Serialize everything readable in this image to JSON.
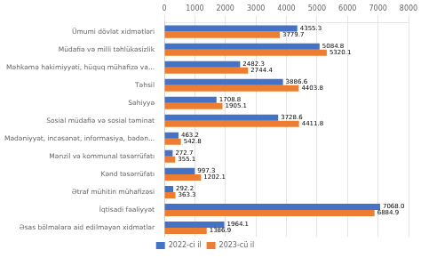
{
  "chart_data": {
    "type": "bar",
    "orientation": "horizontal",
    "categories": [
      "Ümumi dövlət xidmətləri",
      "Müdafiə və milli təhlükəsizlik",
      "Məhkəmə hakimiyyəti, hüquq mühafizə va...",
      "Təhsil",
      "Səhiyyə",
      "Sosial müdafiə və sosial təminat",
      "Mədəniyyət, incəsənət, informasiya, bədən...",
      "Mənzil və kommunal təsərrüfatı",
      "Kənd təsərrüfatı",
      "Ətraf mühitin mühafizəsi",
      "İqtisadi fəaliyyət",
      "Əsas bölmələrə aid edilməyən xidmətlər"
    ],
    "series": [
      {
        "name": "2022-ci il",
        "color": "#4472C4",
        "values": [
          4355.3,
          5084.8,
          2482.3,
          3886.6,
          1708.8,
          3728.6,
          463.2,
          272.7,
          997.3,
          292.2,
          7068.0,
          1964.1
        ],
        "value_labels": [
          "4355.3",
          "5084.8",
          "2482.3",
          "3886.6",
          "1708.8",
          "3728.6",
          "463.2",
          "272.7",
          "997.3",
          "292.2",
          "7068.0",
          "1964.1"
        ]
      },
      {
        "name": "2023-cü il",
        "color": "#ED7D31",
        "values": [
          3779.7,
          5320.1,
          2744.4,
          4403.8,
          1905.1,
          4411.8,
          542.8,
          355.1,
          1202.1,
          363.3,
          6884.9,
          1386.9
        ],
        "value_labels": [
          "3779.7",
          "5320.1",
          "2744.4",
          "4403.8",
          "1905.1",
          "4411.8",
          "542.8",
          "355.1",
          "1202.1",
          "363.3",
          "6884.9",
          "1386.9"
        ]
      }
    ],
    "xlim": [
      0,
      8000
    ],
    "xticks": [
      0,
      1000,
      2000,
      3000,
      4000,
      5000,
      6000,
      7000,
      8000
    ],
    "grid": true,
    "legend": "bottom",
    "data_labels": true
  }
}
